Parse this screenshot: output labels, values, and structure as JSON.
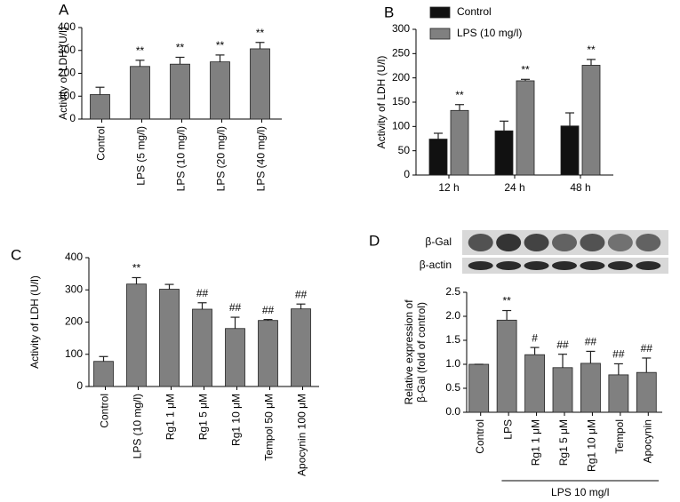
{
  "chart_data": [
    {
      "type": "bar",
      "panel": "A",
      "ylabel": [
        "Activity of LDH (U/l)"
      ],
      "categories": [
        "Control",
        "LPS (5 mg/l)",
        "LPS (10 mg/l)",
        "LPS (20 mg/l)",
        "LPS (40 mg/l)"
      ],
      "values": [
        107,
        230,
        240,
        250,
        307
      ],
      "errors": [
        32,
        27,
        30,
        30,
        28
      ],
      "annotations": [
        null,
        "**",
        "**",
        "**",
        "**"
      ],
      "color": "#808080",
      "ylim": [
        0,
        400
      ],
      "yticks": [
        0,
        100,
        200,
        300,
        400
      ]
    },
    {
      "type": "grouped-bar",
      "panel": "B",
      "ylabel": [
        "Activity of LDH (U/l)"
      ],
      "categories": [
        "12 h",
        "24 h",
        "48 h"
      ],
      "series": [
        {
          "name": "Control",
          "color": "#111111",
          "values": [
            74,
            91,
            101
          ],
          "errors": [
            12,
            20,
            27
          ],
          "annotations": [
            null,
            null,
            null
          ]
        },
        {
          "name": "LPS (10 mg/l)",
          "color": "#808080",
          "values": [
            133,
            194,
            226
          ],
          "errors": [
            12,
            3,
            12
          ],
          "annotations": [
            "**",
            "**",
            "**"
          ]
        }
      ],
      "ylim": [
        0,
        300
      ],
      "yticks": [
        0,
        50,
        100,
        150,
        200,
        250,
        300
      ]
    },
    {
      "type": "bar",
      "panel": "C",
      "ylabel": [
        "Activity of LDH (U/l)"
      ],
      "categories": [
        "Control",
        "LPS (10 mg/l)",
        "Rg1 1 μM",
        "Rg1 5 μM",
        "Rg1 10 μM",
        "Tempol 50 μM",
        "Apocynin 100 μM"
      ],
      "values": [
        78,
        318,
        302,
        240,
        180,
        205,
        241
      ],
      "errors": [
        15,
        20,
        15,
        20,
        35,
        3,
        15
      ],
      "annotations": [
        null,
        "**",
        null,
        "##",
        "##",
        "##",
        "##"
      ],
      "color": "#808080",
      "ylim": [
        0,
        400
      ],
      "yticks": [
        0,
        100,
        200,
        300,
        400
      ]
    },
    {
      "type": "bar",
      "panel": "D",
      "ylabel": [
        "Relative expression of",
        "β-Gal (fold of control)"
      ],
      "blot_labels": [
        "β-Gal",
        "β-actin"
      ],
      "bracket_label": "LPS 10 mg/l",
      "categories": [
        "Control",
        "LPS",
        "Rg1 1 μM",
        "Rg1 5 μM",
        "Rg1 10 μM",
        "Tempol",
        "Apocynin"
      ],
      "values": [
        1.0,
        1.92,
        1.2,
        0.93,
        1.02,
        0.78,
        0.83
      ],
      "errors": [
        0,
        0.2,
        0.15,
        0.28,
        0.25,
        0.23,
        0.3
      ],
      "annotations": [
        null,
        "**",
        "#",
        "##",
        "##",
        "##",
        "##"
      ],
      "color": "#808080",
      "ylim": [
        0,
        2.5
      ],
      "yticks": [
        {
          "value": 0,
          "label": "0.0"
        },
        0.5,
        {
          "value": 1,
          "label": "1.0"
        },
        1.5,
        {
          "value": 2,
          "label": "2.0"
        },
        2.5
      ]
    }
  ]
}
